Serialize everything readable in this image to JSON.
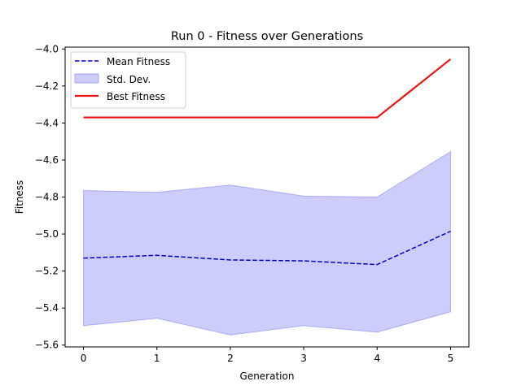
{
  "chart_data": {
    "type": "line",
    "title": "Run 0 - Fitness over Generations",
    "xlabel": "Generation",
    "ylabel": "Fitness",
    "xlim": [
      -0.25,
      5.25
    ],
    "ylim": [
      -5.61,
      -3.99
    ],
    "x": [
      0,
      1,
      2,
      3,
      4,
      5
    ],
    "xticks": [
      "0",
      "1",
      "2",
      "3",
      "4",
      "5"
    ],
    "yticks": [
      -5.6,
      -5.4,
      -5.2,
      -5.0,
      -4.8,
      -4.6,
      -4.4,
      -4.2,
      -4.0
    ],
    "ytick_labels": [
      "−5.6",
      "−5.4",
      "−5.2",
      "−5.0",
      "−4.8",
      "−4.6",
      "−4.4",
      "−4.2",
      "−4.0"
    ],
    "grid": false,
    "legend_position": "top-left",
    "series": [
      {
        "name": "Mean Fitness",
        "style": "dashed",
        "color": "#0000cc",
        "values": [
          -5.13,
          -5.115,
          -5.14,
          -5.145,
          -5.165,
          -4.985
        ]
      },
      {
        "name": "Std. Dev.",
        "style": "band",
        "color": "#7b7bf5",
        "upper": [
          -4.765,
          -4.775,
          -4.735,
          -4.795,
          -4.8,
          -4.555
        ],
        "lower": [
          -5.495,
          -5.455,
          -5.545,
          -5.495,
          -5.53,
          -5.42
        ]
      },
      {
        "name": "Best Fitness",
        "style": "solid",
        "color": "#ee1111",
        "values": [
          -4.37,
          -4.37,
          -4.37,
          -4.37,
          -4.37,
          -4.055
        ]
      }
    ]
  }
}
